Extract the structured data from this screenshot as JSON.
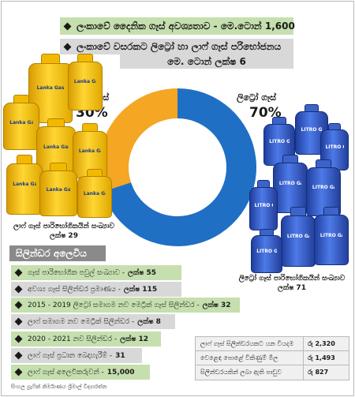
{
  "banners": {
    "daily_demand": "ලංකාවේ දෛනික ගෑස් අවශ්‍යතාව - මෙ.ටොන් 1,600",
    "annual_consumption_line1": "ලංකාවේ වසරකට ලිට්‍රෝ හා ලාෆ් ගෑස් පරිභෝජනය",
    "annual_consumption_line2": "මෙ. ටොන් ලක්ෂ 6"
  },
  "chart_data": {
    "type": "pie",
    "donut": true,
    "title": "",
    "slices": [
      {
        "label": "ලාෆ් ගෑස්",
        "value": 30,
        "value_label": "30%",
        "color": "#f5a623"
      },
      {
        "label": "ලිට්‍රෝ ගෑස්",
        "value": 70,
        "value_label": "70%",
        "color": "#1f6fc4"
      }
    ]
  },
  "cylinder_labels": {
    "laugfs": "Lanka Gas",
    "litro": "LITRO GAS"
  },
  "captions": {
    "laugfs_consumers": "ලාෆ් ගෑස් පාරිභෝගිකයින් සංඛ්‍යාව",
    "laugfs_count": "ලක්ෂ 29",
    "litro_consumers": "ලිට්‍රෝ ගෑස් පාරිභෝගිකයින් සංඛ්‍යාව",
    "litro_count": "ලක්ෂ 71"
  },
  "section": {
    "title": "සිලින්ඩර අලෙවිය",
    "items": [
      {
        "label": "ගෑස් පාරිභෝගික පවුල් සංඛ්‍යාව -",
        "value": "ලක්ෂ 55",
        "style": "green"
      },
      {
        "label": "අවශ්‍ය ගෑස් සිලින්ඩර ප්‍රමාණය -",
        "value": "ලක්ෂ 115",
        "style": "grey"
      },
      {
        "label": "2015 - 2019 ලිට්‍රෝ සමාගම නව මෙට්‍රික් ගෑස් සිලින්ඩර -",
        "value": "ලක්ෂ 32",
        "style": "green"
      },
      {
        "label": "ලාෆ් සමාගම නව මෙට්‍රික් සිලින්ඩර -",
        "value": "ලක්ෂ 8",
        "style": "grey"
      },
      {
        "label": "2020 - 2021 නව සිලින්ඩර -",
        "value": "ලක්ෂ 12",
        "style": "green"
      },
      {
        "label": "ලාෆ් ගෑස් ප්‍රධාන බෙදාහැරීම් -",
        "value": "31",
        "style": "grey"
      },
      {
        "label": "ලාෆ් ගෑස් අලෙවිකරුවන් -",
        "value": "15,000",
        "style": "green"
      }
    ]
  },
  "stats": [
    {
      "label": "ලාෆ් ගෑස් සිලින්ඩරයකට යන වියදම",
      "value": "රු 2,320"
    },
    {
      "label": "වෙළෙඳ පොළේ විකිණුම් මිල",
      "value": "රු 1,493"
    },
    {
      "label": "සිලින්ඩරයකින් ලබා ඇති පාඩුව",
      "value": "රු 827"
    }
  ],
  "source": "සිංහල ග්‍රැෆික් නිර්මාණය ශ්‍රීමාල් විද්‍යාරත්න"
}
